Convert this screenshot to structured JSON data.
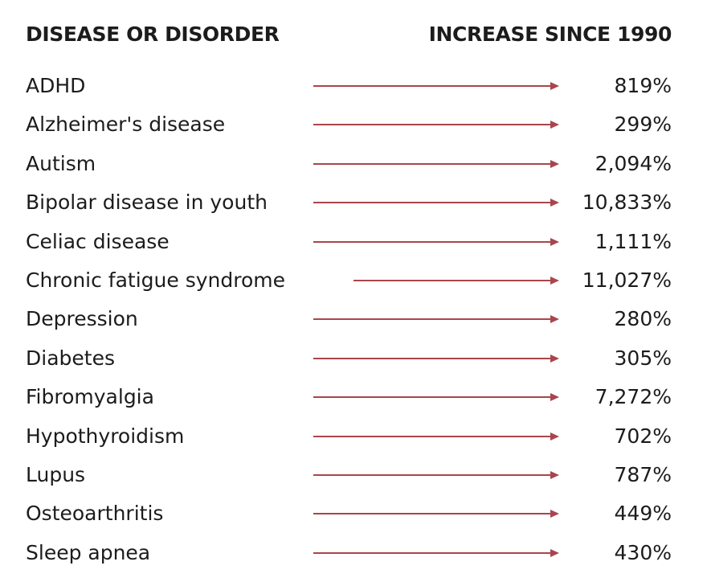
{
  "header": {
    "left": "DISEASE OR DISORDER",
    "right": "INCREASE SINCE 1990"
  },
  "rows": [
    {
      "name": "ADHD",
      "value": "819%"
    },
    {
      "name": "Alzheimer's disease",
      "value": "299%"
    },
    {
      "name": "Autism",
      "value": "2,094%"
    },
    {
      "name": "Bipolar disease in youth",
      "value": "10,833%"
    },
    {
      "name": "Celiac disease",
      "value": "1,111%"
    },
    {
      "name": "Chronic fatigue syndrome",
      "value": "11,027%"
    },
    {
      "name": "Depression",
      "value": "280%"
    },
    {
      "name": "Diabetes",
      "value": "305%"
    },
    {
      "name": "Fibromyalgia",
      "value": "7,272%"
    },
    {
      "name": "Hypothyroidism",
      "value": "702%"
    },
    {
      "name": "Lupus",
      "value": "787%"
    },
    {
      "name": "Osteoarthritis",
      "value": "449%"
    },
    {
      "name": "Sleep apnea",
      "value": "430%"
    }
  ],
  "colors": {
    "arrow": "#a8464c",
    "text": "#1c1c1c",
    "background": "#ffffff"
  }
}
